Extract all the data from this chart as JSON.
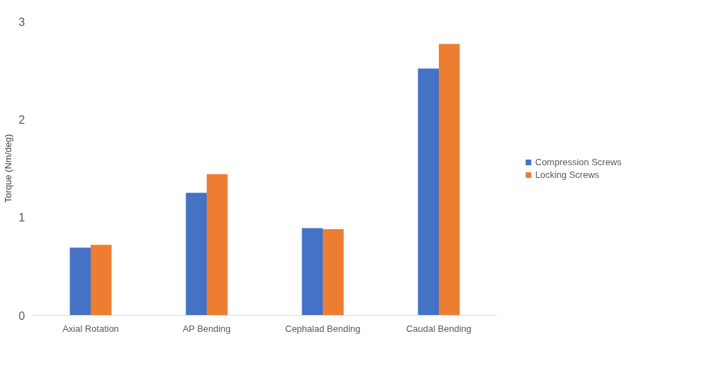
{
  "chart_data": {
    "type": "bar",
    "ylabel": "Torque (Nm/deg)",
    "categories": [
      "Axial Rotation",
      "AP Bending",
      "Cephalad Bending",
      "Caudal Bending"
    ],
    "series": [
      {
        "name": "Compression Screws",
        "color": "#4472c4",
        "values": [
          0.69,
          1.25,
          0.89,
          2.52
        ]
      },
      {
        "name": "Locking Screws",
        "color": "#ed7d31",
        "values": [
          0.72,
          1.44,
          0.88,
          2.77
        ]
      }
    ],
    "ylim": [
      0,
      3
    ],
    "yticks": [
      0,
      1,
      2,
      3
    ],
    "grid": false,
    "legend": "right"
  }
}
